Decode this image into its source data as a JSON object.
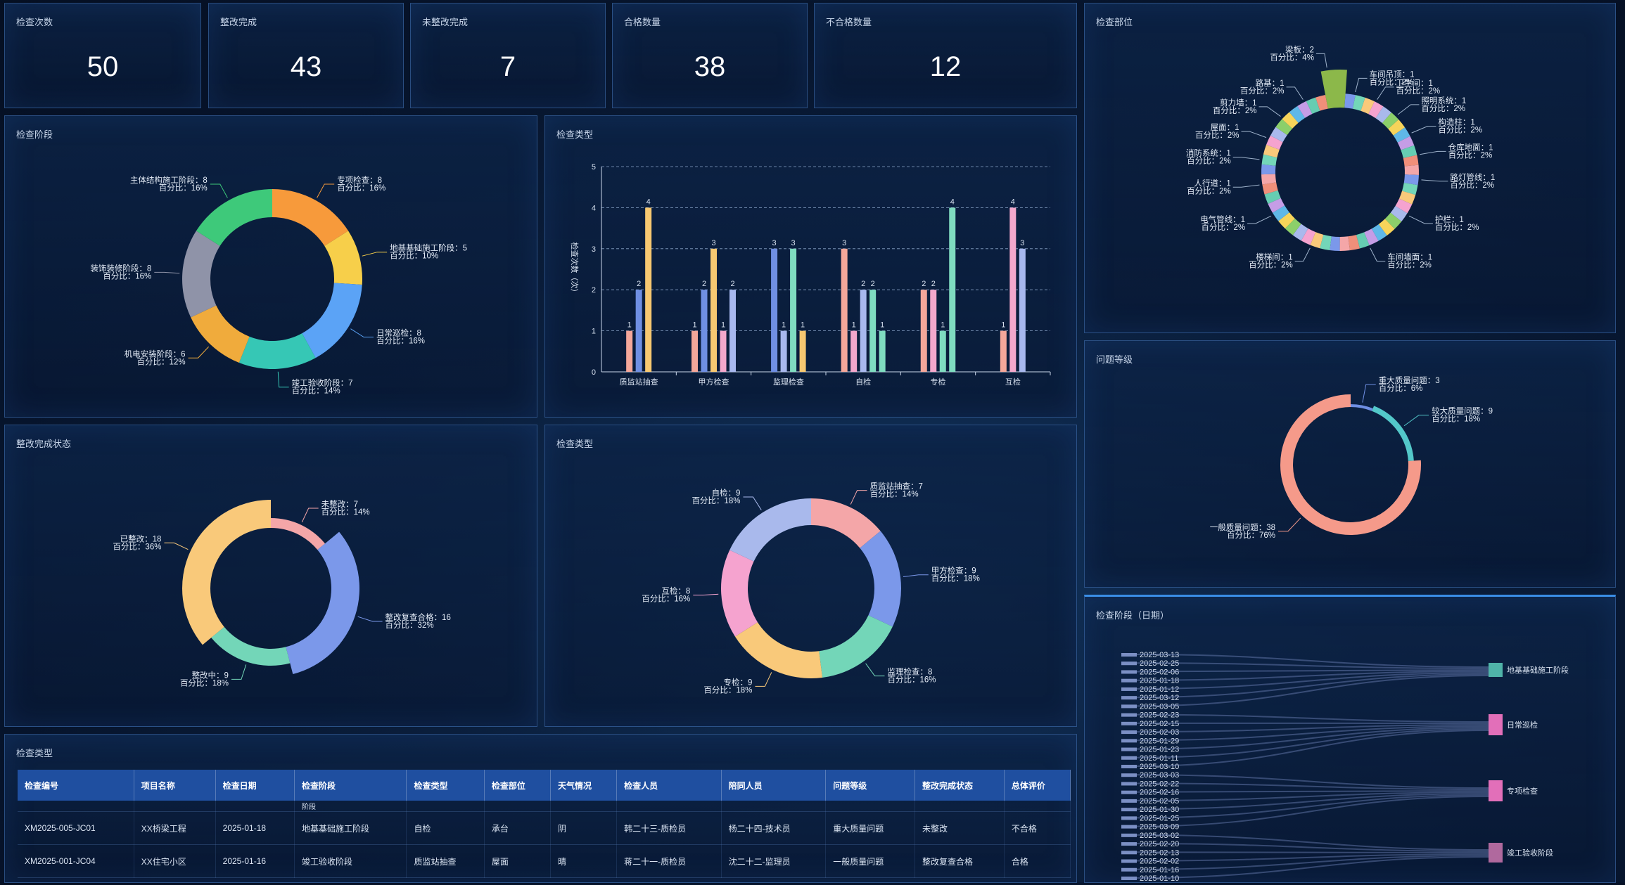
{
  "kpis": [
    {
      "title": "检查次数",
      "value": "50"
    },
    {
      "title": "整改完成",
      "value": "43"
    },
    {
      "title": "未整改完成",
      "value": "7"
    },
    {
      "title": "合格数量",
      "value": "38"
    },
    {
      "title": "不合格数量",
      "value": "12"
    }
  ],
  "stage_panel": {
    "title": "检查阶段"
  },
  "type_bar_panel": {
    "title": "检查类型"
  },
  "status_panel": {
    "title": "整改完成状态"
  },
  "type_pie_panel": {
    "title": "检查类型"
  },
  "location_panel": {
    "title": "检查部位"
  },
  "level_panel": {
    "title": "问题等级"
  },
  "stage_date_panel": {
    "title": "检查阶段（日期）"
  },
  "table_panel": {
    "title": "检查类型"
  },
  "colors": {
    "panel_border": "#3f6fb0",
    "table_header": "#1f4fa0"
  },
  "chart_data": [
    {
      "type": "pie",
      "name": "stage_donut",
      "slices": [
        {
          "label": "专项检查",
          "value": 8,
          "percent": "16%",
          "color": "#f79a3b"
        },
        {
          "label": "地基基础施工阶段",
          "value": 5,
          "percent": "10%",
          "color": "#f7cf4a"
        },
        {
          "label": "日常巡检",
          "value": 8,
          "percent": "16%",
          "color": "#5ba3f6"
        },
        {
          "label": "竣工验收阶段",
          "value": 7,
          "percent": "14%",
          "color": "#36c7b5"
        },
        {
          "label": "机电安装阶段",
          "value": 6,
          "percent": "12%",
          "color": "#f0ab3c"
        },
        {
          "label": "装饰装修阶段",
          "value": 8,
          "percent": "16%",
          "color": "#8f93a8"
        },
        {
          "label": "主体结构施工阶段",
          "value": 8,
          "percent": "16%",
          "color": "#3ec97a"
        }
      ],
      "percent_prefix": "百分比："
    },
    {
      "type": "bar",
      "name": "type_bar",
      "categories": [
        "质监站抽查",
        "甲方检查",
        "监理检查",
        "自检",
        "专检",
        "互检"
      ],
      "ylabel": "检查次数（次）",
      "ylim": [
        0,
        5
      ],
      "yticks": [
        0,
        1,
        2,
        3,
        4,
        5
      ],
      "series": [
        {
          "color": "#f4a79a",
          "values": [
            1,
            1,
            0,
            3,
            2,
            1
          ]
        },
        {
          "color": "#6f8fe3",
          "values": [
            2,
            2,
            3,
            0,
            0,
            0
          ]
        },
        {
          "color": "#f7c871",
          "values": [
            4,
            3,
            0,
            0,
            0,
            0
          ]
        },
        {
          "color": "#f3a8cc",
          "values": [
            0,
            1,
            0,
            1,
            2,
            4
          ]
        },
        {
          "color": "#a8b8ee",
          "values": [
            0,
            2,
            1,
            2,
            0,
            3
          ]
        },
        {
          "color": "#7fdcc0",
          "values": [
            0,
            0,
            3,
            2,
            1,
            0
          ]
        },
        {
          "color": "#f7c871",
          "values": [
            0,
            0,
            1,
            0,
            0,
            0
          ]
        },
        {
          "color": "#7fdcc0",
          "values": [
            0,
            0,
            0,
            1,
            4,
            0
          ]
        }
      ]
    },
    {
      "type": "pie",
      "name": "status_donut",
      "slices": [
        {
          "label": "未整改",
          "value": 7,
          "percent": "14%",
          "color": "#f4a6a8"
        },
        {
          "label": "整改复查合格",
          "value": 16,
          "percent": "32%",
          "color": "#7b98ea"
        },
        {
          "label": "整改中",
          "value": 9,
          "percent": "18%",
          "color": "#73d6b8"
        },
        {
          "label": "已整改",
          "value": 18,
          "percent": "36%",
          "color": "#f9c97a"
        }
      ],
      "percent_prefix": "百分比："
    },
    {
      "type": "pie",
      "name": "type_donut",
      "slices": [
        {
          "label": "质监站抽查",
          "value": 7,
          "percent": "14%",
          "color": "#f4a6a8"
        },
        {
          "label": "甲方检查",
          "value": 9,
          "percent": "18%",
          "color": "#7b98ea"
        },
        {
          "label": "监理检查",
          "value": 8,
          "percent": "16%",
          "color": "#73d6b8"
        },
        {
          "label": "专检",
          "value": 9,
          "percent": "18%",
          "color": "#f9c97a"
        },
        {
          "label": "互检",
          "value": 8,
          "percent": "16%",
          "color": "#f5a3cf"
        },
        {
          "label": "自检",
          "value": 9,
          "percent": "18%",
          "color": "#a9b9ec"
        }
      ],
      "percent_prefix": "百分比："
    },
    {
      "type": "pie",
      "name": "location_donut",
      "labels": [
        {
          "label": "车间吊顶",
          "value": 1,
          "percent": "2%"
        },
        {
          "label": "卫生间",
          "value": 1,
          "percent": "2%"
        },
        {
          "label": "照明系统",
          "value": 1,
          "percent": "2%"
        },
        {
          "label": "构造柱",
          "value": 1,
          "percent": "2%"
        },
        {
          "label": "仓库地面",
          "value": 1,
          "percent": "2%"
        },
        {
          "label": "路灯管线",
          "value": 1,
          "percent": "2%"
        },
        {
          "label": "护栏",
          "value": 1,
          "percent": "2%"
        },
        {
          "label": "车间墙面",
          "value": 1,
          "percent": "2%"
        },
        {
          "label": "楼梯间",
          "value": 1,
          "percent": "2%"
        },
        {
          "label": "电气管线",
          "value": 1,
          "percent": "2%"
        },
        {
          "label": "人行道",
          "value": 1,
          "percent": "2%"
        },
        {
          "label": "消防系统",
          "value": 1,
          "percent": "2%"
        },
        {
          "label": "屋面",
          "value": 1,
          "percent": "2%"
        },
        {
          "label": "剪力墙",
          "value": 1,
          "percent": "2%"
        },
        {
          "label": "路基",
          "value": 1,
          "percent": "2%"
        },
        {
          "label": "梁板",
          "value": 2,
          "percent": "4%"
        }
      ],
      "percent_prefix": "百分比："
    },
    {
      "type": "pie",
      "name": "level_donut",
      "slices": [
        {
          "label": "重大质量问题",
          "value": 3,
          "percent": "6%",
          "color": "#6f8fe3"
        },
        {
          "label": "较大质量问题",
          "value": 9,
          "percent": "18%",
          "color": "#53c8c9"
        },
        {
          "label": "一般质量问题",
          "value": 38,
          "percent": "76%",
          "color": "#f59a8a"
        }
      ],
      "percent_prefix": "百分比："
    },
    {
      "type": "sankey",
      "name": "stage_date_sankey",
      "dates": [
        "2025-03-13",
        "2025-02-25",
        "2025-02-06",
        "2025-01-18",
        "2025-01-12",
        "2025-03-12",
        "2025-03-05",
        "2025-02-23",
        "2025-02-15",
        "2025-02-03",
        "2025-01-29",
        "2025-01-23",
        "2025-01-11",
        "2025-03-10",
        "2025-03-03",
        "2025-02-22",
        "2025-02-16",
        "2025-02-05",
        "2025-01-30",
        "2025-01-25",
        "2025-03-09",
        "2025-03-02",
        "2025-02-20",
        "2025-02-13",
        "2025-02-02",
        "2025-01-16",
        "2025-01-10"
      ],
      "stages": [
        {
          "label": "地基基础施工阶段",
          "color": "#4fb3a8"
        },
        {
          "label": "日常巡检",
          "color": "#e26fb9"
        },
        {
          "label": "专项检查",
          "color": "#e26fb9"
        },
        {
          "label": "竣工验收阶段",
          "color": "#b0699e"
        }
      ]
    }
  ],
  "table": {
    "headers": [
      "检查编号",
      "项目名称",
      "检查日期",
      "检查阶段",
      "检查类型",
      "检查部位",
      "天气情况",
      "检查人员",
      "陪同人员",
      "问题等级",
      "整改完成状态",
      "总体评价"
    ],
    "partial_row": [
      "",
      "",
      "",
      "阶段",
      "",
      "",
      "",
      "",
      "",
      "",
      "",
      ""
    ],
    "rows": [
      [
        "XM2025-005-JC01",
        "XX桥梁工程",
        "2025-01-18",
        "地基基础施工阶段",
        "自检",
        "承台",
        "阴",
        "韩二十三-质检员",
        "杨二十四-技术员",
        "重大质量问题",
        "未整改",
        "不合格"
      ],
      [
        "XM2025-001-JC04",
        "XX住宅小区",
        "2025-01-16",
        "竣工验收阶段",
        "质监站抽查",
        "屋面",
        "晴",
        "蒋二十一-质检员",
        "沈二十二-监理员",
        "一般质量问题",
        "整改复查合格",
        "合格"
      ]
    ]
  }
}
